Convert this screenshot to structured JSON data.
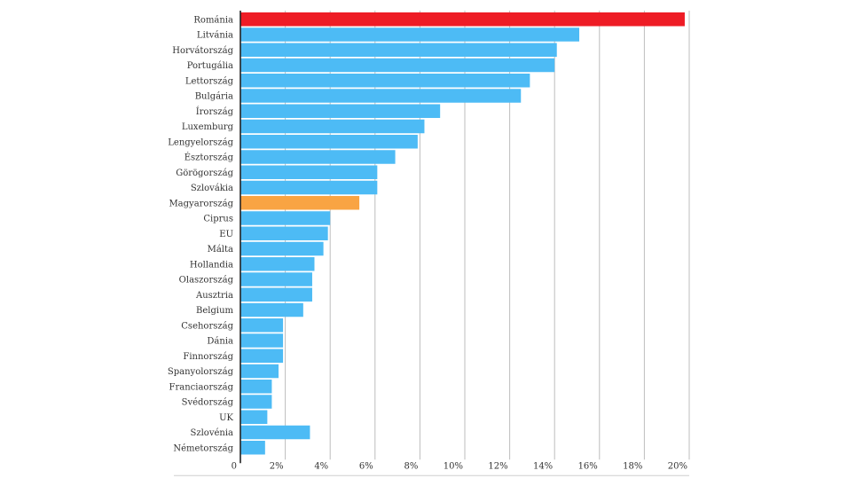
{
  "chart_data": {
    "type": "bar",
    "orientation": "horizontal",
    "categories": [
      "Románia",
      "Litvánia",
      "Horvátország",
      "Portugália",
      "Lettország",
      "Bulgária",
      "Írország",
      "Luxemburg",
      "Lengyelország",
      "Észtország",
      "Görögország",
      "Szlovákia",
      "Magyarország",
      "Ciprus",
      "EU",
      "Málta",
      "Hollandia",
      "Olaszország",
      "Ausztria",
      "Belgium",
      "Csehország",
      "Dánia",
      "Finnország",
      "Spanyolország",
      "Franciaország",
      "Svédország",
      "UK",
      "Szlovénia",
      "Németország"
    ],
    "values": [
      19.8,
      15.1,
      14.1,
      14.0,
      12.9,
      12.5,
      8.9,
      8.2,
      7.9,
      6.9,
      6.1,
      6.1,
      5.3,
      4.0,
      3.9,
      3.7,
      3.3,
      3.2,
      3.2,
      2.8,
      1.9,
      1.9,
      1.9,
      1.7,
      1.4,
      1.4,
      1.2,
      3.1,
      1.1
    ],
    "colors": [
      "#ee1c25",
      "#4dbbf5",
      "#4dbbf5",
      "#4dbbf5",
      "#4dbbf5",
      "#4dbbf5",
      "#4dbbf5",
      "#4dbbf5",
      "#4dbbf5",
      "#4dbbf5",
      "#4dbbf5",
      "#4dbbf5",
      "#f9a443",
      "#4dbbf5",
      "#4dbbf5",
      "#4dbbf5",
      "#4dbbf5",
      "#4dbbf5",
      "#4dbbf5",
      "#4dbbf5",
      "#4dbbf5",
      "#4dbbf5",
      "#4dbbf5",
      "#4dbbf5",
      "#4dbbf5",
      "#4dbbf5",
      "#4dbbf5",
      "#4dbbf5",
      "#4dbbf5"
    ],
    "xlim": [
      0,
      20
    ],
    "x_ticks": [
      0,
      2,
      4,
      6,
      8,
      10,
      12,
      14,
      16,
      18,
      20
    ],
    "x_tick_labels": [
      "0",
      "2%",
      "4%",
      "6%",
      "8%",
      "10%",
      "12%",
      "14%",
      "16%",
      "18%",
      "20%"
    ],
    "grid": true,
    "title": "",
    "xlabel": "",
    "ylabel": ""
  }
}
